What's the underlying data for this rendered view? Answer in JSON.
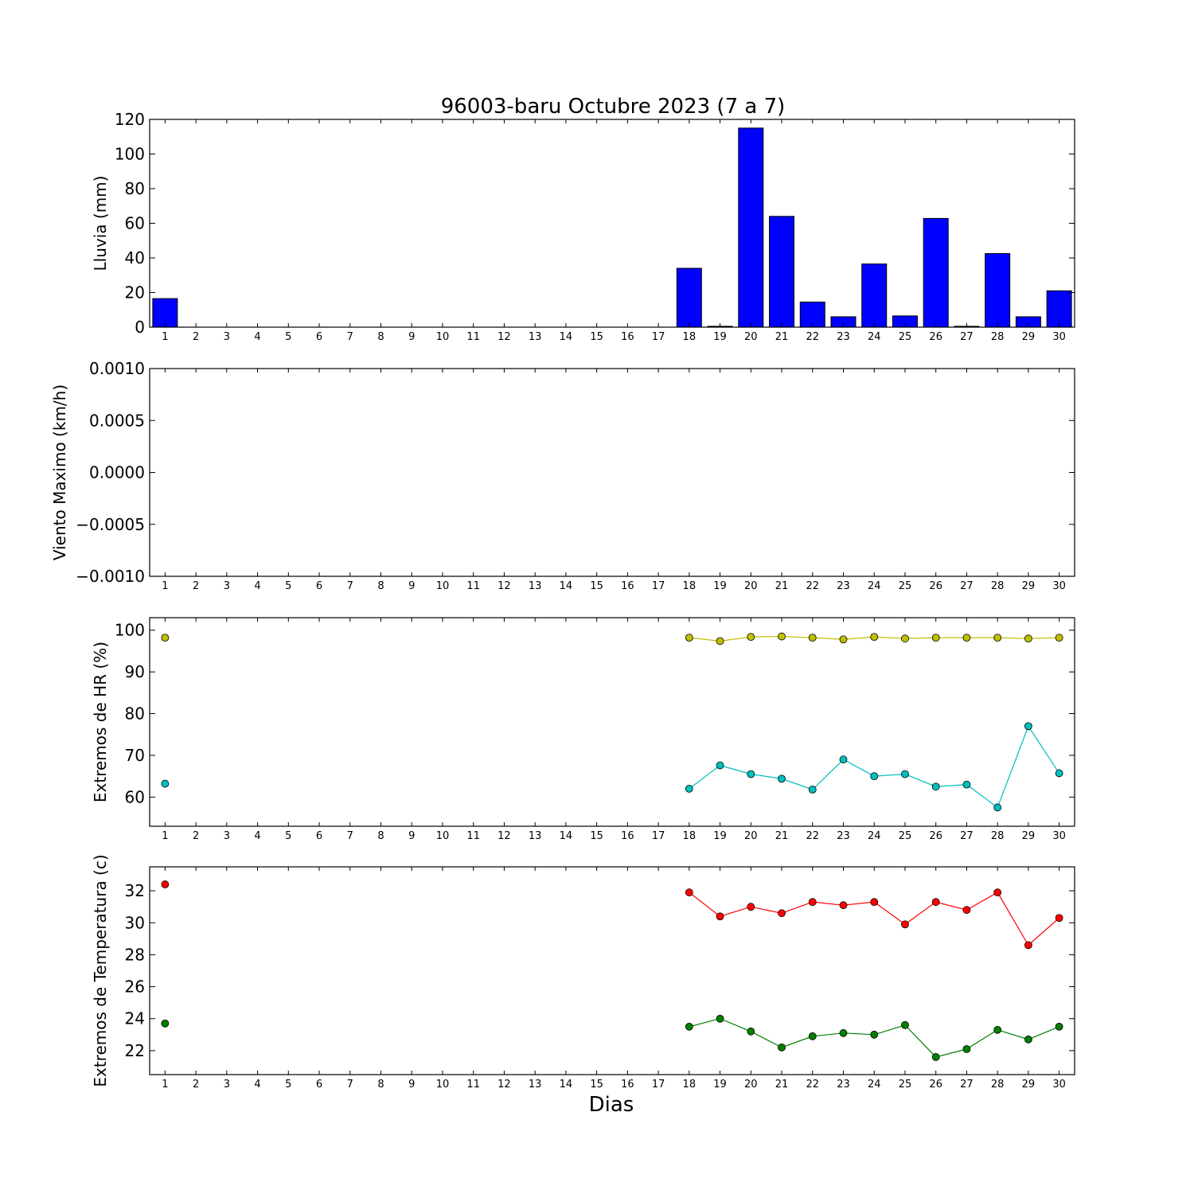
{
  "title": "96003-baru Octubre 2023  (7 a 7)",
  "xlabel": "Dias",
  "colors": {
    "rain": "#0000ff",
    "hr_max": "#bfbf00",
    "hr_min": "#00bfbf",
    "temp_max": "#ff0000",
    "temp_min": "#008000"
  },
  "chart_data": [
    {
      "type": "bar",
      "ylabel": "Lluvia (mm)",
      "categories": [
        "1",
        "2",
        "3",
        "4",
        "5",
        "6",
        "7",
        "8",
        "9",
        "10",
        "11",
        "12",
        "13",
        "14",
        "15",
        "16",
        "17",
        "18",
        "19",
        "20",
        "21",
        "22",
        "23",
        "24",
        "25",
        "26",
        "27",
        "28",
        "29",
        "30"
      ],
      "ylim": [
        0,
        120
      ],
      "yticks": [
        "0",
        "20",
        "40",
        "60",
        "80",
        "100",
        "120"
      ],
      "values": [
        16.5,
        0,
        0,
        0,
        0,
        0,
        0,
        0,
        0,
        0,
        0,
        0,
        0,
        0,
        0,
        0,
        0,
        34,
        0.5,
        115,
        64,
        14.5,
        6,
        36.5,
        6.5,
        62.8,
        0.5,
        42.5,
        6,
        21
      ]
    },
    {
      "type": "line",
      "ylabel": "Viento Maximo (km/h)",
      "categories": [
        "1",
        "2",
        "3",
        "4",
        "5",
        "6",
        "7",
        "8",
        "9",
        "10",
        "11",
        "12",
        "13",
        "14",
        "15",
        "16",
        "17",
        "18",
        "19",
        "20",
        "21",
        "22",
        "23",
        "24",
        "25",
        "26",
        "27",
        "28",
        "29",
        "30"
      ],
      "ylim": [
        -0.001,
        0.001
      ],
      "yticks": [
        "−0.0010",
        "−0.0005",
        "0.0000",
        "0.0005",
        "0.0010"
      ],
      "series": []
    },
    {
      "type": "line",
      "ylabel": "Extremos de HR (%)",
      "categories": [
        "1",
        "2",
        "3",
        "4",
        "5",
        "6",
        "7",
        "8",
        "9",
        "10",
        "11",
        "12",
        "13",
        "14",
        "15",
        "16",
        "17",
        "18",
        "19",
        "20",
        "21",
        "22",
        "23",
        "24",
        "25",
        "26",
        "27",
        "28",
        "29",
        "30"
      ],
      "ylim": [
        53,
        103
      ],
      "yticks": [
        "60",
        "70",
        "80",
        "90",
        "100"
      ],
      "series": [
        {
          "color_key": "hr_max",
          "values": [
            98.2,
            null,
            null,
            null,
            null,
            null,
            null,
            null,
            null,
            null,
            null,
            null,
            null,
            null,
            null,
            null,
            null,
            98.2,
            97.4,
            98.4,
            98.5,
            98.2,
            97.8,
            98.4,
            98.0,
            98.2,
            98.2,
            98.2,
            98.0,
            98.2
          ]
        },
        {
          "color_key": "hr_min",
          "values": [
            63.2,
            null,
            null,
            null,
            null,
            null,
            null,
            null,
            null,
            null,
            null,
            null,
            null,
            null,
            null,
            null,
            null,
            62.0,
            67.6,
            65.5,
            64.4,
            61.8,
            69.0,
            65.0,
            65.5,
            62.5,
            63.0,
            57.5,
            77.0,
            65.7
          ]
        }
      ]
    },
    {
      "type": "line",
      "ylabel": "Extremos de Temperatura (c)",
      "categories": [
        "1",
        "2",
        "3",
        "4",
        "5",
        "6",
        "7",
        "8",
        "9",
        "10",
        "11",
        "12",
        "13",
        "14",
        "15",
        "16",
        "17",
        "18",
        "19",
        "20",
        "21",
        "22",
        "23",
        "24",
        "25",
        "26",
        "27",
        "28",
        "29",
        "30"
      ],
      "ylim": [
        20.5,
        33.5
      ],
      "yticks": [
        "22",
        "24",
        "26",
        "28",
        "30",
        "32"
      ],
      "series": [
        {
          "color_key": "temp_max",
          "values": [
            32.4,
            null,
            null,
            null,
            null,
            null,
            null,
            null,
            null,
            null,
            null,
            null,
            null,
            null,
            null,
            null,
            null,
            31.9,
            30.4,
            31.0,
            30.6,
            31.3,
            31.1,
            31.3,
            29.9,
            31.3,
            30.8,
            31.9,
            28.6,
            30.3
          ]
        },
        {
          "color_key": "temp_min",
          "values": [
            23.7,
            null,
            null,
            null,
            null,
            null,
            null,
            null,
            null,
            null,
            null,
            null,
            null,
            null,
            null,
            null,
            null,
            23.5,
            24.0,
            23.2,
            22.2,
            22.9,
            23.1,
            23.0,
            23.6,
            21.6,
            22.1,
            23.3,
            22.7,
            23.5
          ]
        }
      ]
    }
  ]
}
